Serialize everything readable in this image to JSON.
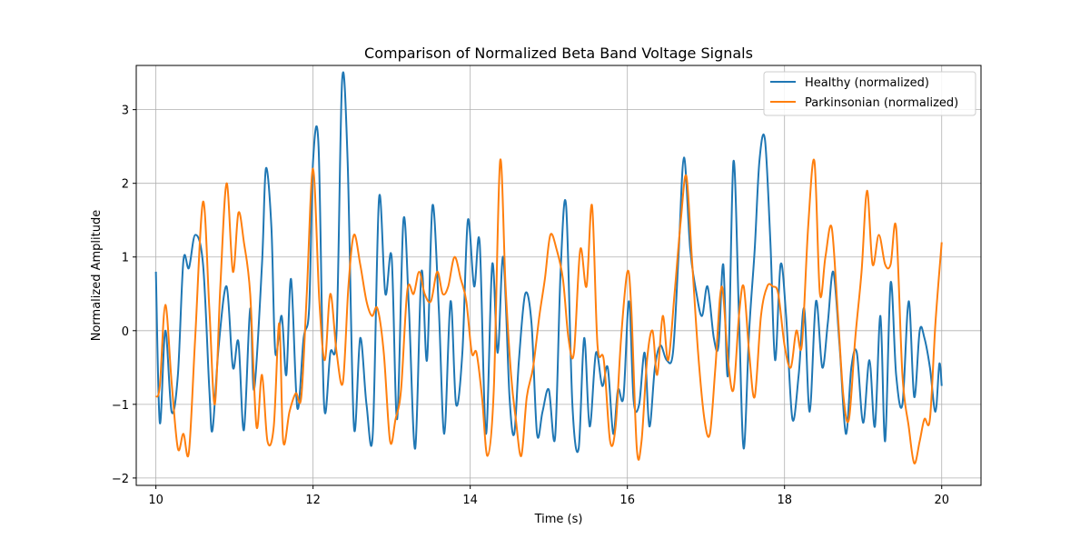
{
  "chart_data": {
    "type": "line",
    "title": "Comparison of Normalized Beta Band Voltage Signals",
    "xlabel": "Time (s)",
    "ylabel": "Normalized Amplitude",
    "xlim": [
      9.75,
      20.5
    ],
    "ylim": [
      -2.1,
      3.6
    ],
    "xticks": [
      10,
      12,
      14,
      16,
      18,
      20
    ],
    "yticks": [
      -2,
      -1,
      0,
      1,
      2,
      3
    ],
    "grid": true,
    "legend_position": "top-right",
    "series": [
      {
        "name": "Healthy (normalized)",
        "color": "#1f77b4",
        "points": [
          [
            10.0,
            0.8
          ],
          [
            10.05,
            -1.25
          ],
          [
            10.12,
            0.0
          ],
          [
            10.2,
            -1.1
          ],
          [
            10.28,
            -0.6
          ],
          [
            10.35,
            0.95
          ],
          [
            10.42,
            0.85
          ],
          [
            10.5,
            1.3
          ],
          [
            10.6,
            0.9
          ],
          [
            10.68,
            -0.8
          ],
          [
            10.72,
            -1.35
          ],
          [
            10.8,
            -0.2
          ],
          [
            10.9,
            0.6
          ],
          [
            10.98,
            -0.5
          ],
          [
            11.05,
            -0.15
          ],
          [
            11.12,
            -1.35
          ],
          [
            11.2,
            0.3
          ],
          [
            11.25,
            -0.8
          ],
          [
            11.35,
            0.9
          ],
          [
            11.4,
            2.2
          ],
          [
            11.47,
            1.4
          ],
          [
            11.52,
            -0.3
          ],
          [
            11.6,
            0.2
          ],
          [
            11.66,
            -0.6
          ],
          [
            11.72,
            0.7
          ],
          [
            11.8,
            -1.05
          ],
          [
            11.88,
            -0.1
          ],
          [
            11.95,
            0.3
          ],
          [
            12.0,
            2.3
          ],
          [
            12.07,
            2.5
          ],
          [
            12.14,
            -1.0
          ],
          [
            12.22,
            -0.3
          ],
          [
            12.3,
            0.0
          ],
          [
            12.37,
            3.4
          ],
          [
            12.44,
            2.3
          ],
          [
            12.52,
            -1.3
          ],
          [
            12.6,
            -0.1
          ],
          [
            12.68,
            -1.0
          ],
          [
            12.76,
            -1.4
          ],
          [
            12.84,
            1.8
          ],
          [
            12.92,
            0.5
          ],
          [
            13.0,
            1.0
          ],
          [
            13.07,
            -1.2
          ],
          [
            13.15,
            1.5
          ],
          [
            13.22,
            0.3
          ],
          [
            13.3,
            -1.6
          ],
          [
            13.38,
            0.8
          ],
          [
            13.45,
            -0.4
          ],
          [
            13.52,
            1.7
          ],
          [
            13.6,
            0.3
          ],
          [
            13.67,
            -1.4
          ],
          [
            13.75,
            0.4
          ],
          [
            13.82,
            -1.0
          ],
          [
            13.9,
            -0.3
          ],
          [
            13.97,
            1.5
          ],
          [
            14.05,
            0.6
          ],
          [
            14.12,
            1.2
          ],
          [
            14.2,
            -1.4
          ],
          [
            14.28,
            0.9
          ],
          [
            14.35,
            -0.3
          ],
          [
            14.42,
            1.0
          ],
          [
            14.5,
            -0.9
          ],
          [
            14.56,
            -1.4
          ],
          [
            14.62,
            -0.4
          ],
          [
            14.7,
            0.5
          ],
          [
            14.78,
            0.1
          ],
          [
            14.85,
            -1.4
          ],
          [
            14.92,
            -1.1
          ],
          [
            15.0,
            -0.8
          ],
          [
            15.08,
            -1.45
          ],
          [
            15.15,
            0.8
          ],
          [
            15.22,
            1.7
          ],
          [
            15.3,
            -1.0
          ],
          [
            15.38,
            -1.6
          ],
          [
            15.45,
            -0.1
          ],
          [
            15.52,
            -1.3
          ],
          [
            15.6,
            -0.3
          ],
          [
            15.68,
            -0.75
          ],
          [
            15.75,
            -0.5
          ],
          [
            15.82,
            -1.4
          ],
          [
            15.88,
            -0.8
          ],
          [
            15.95,
            -0.9
          ],
          [
            16.02,
            0.4
          ],
          [
            16.08,
            -0.95
          ],
          [
            16.15,
            -1.0
          ],
          [
            16.22,
            -0.3
          ],
          [
            16.28,
            -1.3
          ],
          [
            16.35,
            -0.5
          ],
          [
            16.42,
            -0.2
          ],
          [
            16.5,
            -0.4
          ],
          [
            16.58,
            -0.3
          ],
          [
            16.65,
            1.0
          ],
          [
            16.72,
            2.35
          ],
          [
            16.8,
            1.1
          ],
          [
            16.88,
            0.5
          ],
          [
            16.95,
            0.2
          ],
          [
            17.02,
            0.6
          ],
          [
            17.1,
            -0.1
          ],
          [
            17.16,
            -0.2
          ],
          [
            17.22,
            0.9
          ],
          [
            17.28,
            -0.6
          ],
          [
            17.35,
            2.3
          ],
          [
            17.42,
            0.2
          ],
          [
            17.48,
            -1.6
          ],
          [
            17.55,
            0.0
          ],
          [
            17.62,
            1.1
          ],
          [
            17.68,
            2.3
          ],
          [
            17.75,
            2.6
          ],
          [
            17.82,
            1.2
          ],
          [
            17.88,
            -0.4
          ],
          [
            17.95,
            0.9
          ],
          [
            18.02,
            0.2
          ],
          [
            18.1,
            -1.2
          ],
          [
            18.18,
            -0.6
          ],
          [
            18.25,
            0.3
          ],
          [
            18.32,
            -1.1
          ],
          [
            18.4,
            0.4
          ],
          [
            18.48,
            -0.5
          ],
          [
            18.55,
            0.1
          ],
          [
            18.62,
            0.8
          ],
          [
            18.7,
            -0.2
          ],
          [
            18.78,
            -1.4
          ],
          [
            18.85,
            -0.5
          ],
          [
            18.92,
            -0.3
          ],
          [
            19.0,
            -1.25
          ],
          [
            19.08,
            -0.4
          ],
          [
            19.15,
            -1.3
          ],
          [
            19.22,
            0.2
          ],
          [
            19.28,
            -1.5
          ],
          [
            19.35,
            0.65
          ],
          [
            19.42,
            -0.6
          ],
          [
            19.5,
            -1.0
          ],
          [
            19.58,
            0.4
          ],
          [
            19.65,
            -0.9
          ],
          [
            19.72,
            0.0
          ],
          [
            19.78,
            -0.1
          ],
          [
            19.85,
            -0.5
          ],
          [
            19.92,
            -1.1
          ],
          [
            19.97,
            -0.45
          ],
          [
            20.0,
            -0.75
          ]
        ]
      },
      {
        "name": "Parkinsonian (normalized)",
        "color": "#ff7f0e",
        "points": [
          [
            10.0,
            -0.9
          ],
          [
            10.05,
            -0.75
          ],
          [
            10.12,
            0.35
          ],
          [
            10.2,
            -0.7
          ],
          [
            10.28,
            -1.6
          ],
          [
            10.35,
            -1.4
          ],
          [
            10.42,
            -1.65
          ],
          [
            10.5,
            -0.1
          ],
          [
            10.6,
            1.75
          ],
          [
            10.68,
            0.3
          ],
          [
            10.75,
            -1.0
          ],
          [
            10.82,
            0.6
          ],
          [
            10.9,
            2.0
          ],
          [
            10.98,
            0.8
          ],
          [
            11.05,
            1.6
          ],
          [
            11.12,
            1.2
          ],
          [
            11.2,
            0.5
          ],
          [
            11.28,
            -1.3
          ],
          [
            11.35,
            -0.6
          ],
          [
            11.42,
            -1.5
          ],
          [
            11.5,
            -1.3
          ],
          [
            11.57,
            0.1
          ],
          [
            11.62,
            -1.5
          ],
          [
            11.7,
            -1.1
          ],
          [
            11.78,
            -0.85
          ],
          [
            11.85,
            -0.9
          ],
          [
            11.92,
            0.5
          ],
          [
            12.0,
            2.2
          ],
          [
            12.08,
            0.4
          ],
          [
            12.15,
            -0.4
          ],
          [
            12.22,
            0.5
          ],
          [
            12.3,
            -0.3
          ],
          [
            12.38,
            -0.7
          ],
          [
            12.45,
            0.6
          ],
          [
            12.52,
            1.3
          ],
          [
            12.6,
            0.9
          ],
          [
            12.68,
            0.4
          ],
          [
            12.75,
            0.2
          ],
          [
            12.82,
            0.3
          ],
          [
            12.9,
            -0.3
          ],
          [
            12.98,
            -1.5
          ],
          [
            13.05,
            -1.2
          ],
          [
            13.12,
            -0.8
          ],
          [
            13.2,
            0.55
          ],
          [
            13.28,
            0.5
          ],
          [
            13.35,
            0.8
          ],
          [
            13.42,
            0.5
          ],
          [
            13.5,
            0.4
          ],
          [
            13.58,
            0.8
          ],
          [
            13.65,
            0.5
          ],
          [
            13.72,
            0.6
          ],
          [
            13.8,
            1.0
          ],
          [
            13.88,
            0.7
          ],
          [
            13.95,
            0.4
          ],
          [
            14.02,
            -0.3
          ],
          [
            14.08,
            -0.3
          ],
          [
            14.15,
            -0.9
          ],
          [
            14.22,
            -1.7
          ],
          [
            14.3,
            -0.8
          ],
          [
            14.38,
            2.3
          ],
          [
            14.45,
            0.6
          ],
          [
            14.52,
            -0.6
          ],
          [
            14.58,
            -1.2
          ],
          [
            14.65,
            -1.7
          ],
          [
            14.72,
            -0.9
          ],
          [
            14.8,
            -0.5
          ],
          [
            14.88,
            0.2
          ],
          [
            14.95,
            0.7
          ],
          [
            15.02,
            1.3
          ],
          [
            15.1,
            1.1
          ],
          [
            15.18,
            0.7
          ],
          [
            15.25,
            -0.1
          ],
          [
            15.32,
            -0.3
          ],
          [
            15.4,
            1.1
          ],
          [
            15.48,
            0.6
          ],
          [
            15.55,
            1.7
          ],
          [
            15.62,
            -0.2
          ],
          [
            15.7,
            -0.4
          ],
          [
            15.78,
            -1.5
          ],
          [
            15.85,
            -1.3
          ],
          [
            15.92,
            -0.1
          ],
          [
            16.0,
            0.8
          ],
          [
            16.05,
            0.3
          ],
          [
            16.12,
            -1.6
          ],
          [
            16.18,
            -1.5
          ],
          [
            16.25,
            -0.4
          ],
          [
            16.32,
            0.0
          ],
          [
            16.38,
            -0.6
          ],
          [
            16.45,
            0.2
          ],
          [
            16.52,
            -0.4
          ],
          [
            16.6,
            0.5
          ],
          [
            16.68,
            1.5
          ],
          [
            16.75,
            2.1
          ],
          [
            16.82,
            1.0
          ],
          [
            16.9,
            -0.3
          ],
          [
            16.98,
            -1.2
          ],
          [
            17.05,
            -1.4
          ],
          [
            17.12,
            -0.5
          ],
          [
            17.2,
            0.6
          ],
          [
            17.28,
            -0.4
          ],
          [
            17.35,
            -0.8
          ],
          [
            17.42,
            0.2
          ],
          [
            17.48,
            0.6
          ],
          [
            17.55,
            -0.3
          ],
          [
            17.62,
            -0.9
          ],
          [
            17.7,
            0.2
          ],
          [
            17.78,
            0.6
          ],
          [
            17.85,
            0.6
          ],
          [
            17.92,
            0.5
          ],
          [
            18.0,
            -0.2
          ],
          [
            18.08,
            -0.5
          ],
          [
            18.15,
            0.0
          ],
          [
            18.22,
            -0.2
          ],
          [
            18.3,
            1.4
          ],
          [
            18.38,
            2.3
          ],
          [
            18.45,
            0.5
          ],
          [
            18.52,
            1.0
          ],
          [
            18.6,
            1.4
          ],
          [
            18.68,
            0.2
          ],
          [
            18.75,
            -0.9
          ],
          [
            18.82,
            -1.2
          ],
          [
            18.9,
            -0.1
          ],
          [
            18.98,
            0.8
          ],
          [
            19.05,
            1.9
          ],
          [
            19.12,
            0.9
          ],
          [
            19.2,
            1.3
          ],
          [
            19.28,
            0.9
          ],
          [
            19.35,
            0.9
          ],
          [
            19.42,
            1.4
          ],
          [
            19.5,
            -0.6
          ],
          [
            19.58,
            -1.3
          ],
          [
            19.65,
            -1.8
          ],
          [
            19.72,
            -1.5
          ],
          [
            19.78,
            -1.2
          ],
          [
            19.85,
            -1.2
          ],
          [
            19.92,
            0.1
          ],
          [
            20.0,
            1.2
          ]
        ]
      }
    ]
  }
}
